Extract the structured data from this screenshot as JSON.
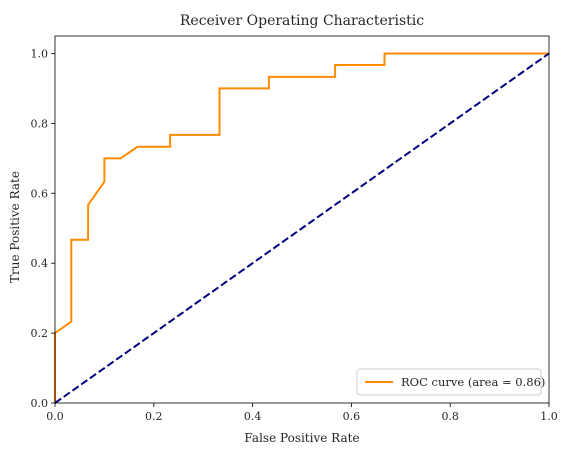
{
  "chart_data": {
    "type": "line",
    "title": "Receiver Operating Characteristic",
    "xlabel": "False Positive Rate",
    "ylabel": "True Positive Rate",
    "xlim": [
      0.0,
      1.0
    ],
    "ylim": [
      0.0,
      1.05
    ],
    "x_ticks": [
      "0.0",
      "0.2",
      "0.4",
      "0.6",
      "0.8",
      "1.0"
    ],
    "y_ticks": [
      "0.0",
      "0.2",
      "0.4",
      "0.6",
      "0.8",
      "1.0"
    ],
    "grid": false,
    "legend_position": "lower-right",
    "series": [
      {
        "name": "ROC curve (area = 0.86)",
        "color": "#ff8c00",
        "style": "solid",
        "x": [
          0.0,
          0.0,
          0.033,
          0.033,
          0.067,
          0.067,
          0.1,
          0.1,
          0.133,
          0.167,
          0.233,
          0.233,
          0.333,
          0.333,
          0.433,
          0.433,
          0.567,
          0.567,
          0.667,
          0.667,
          1.0
        ],
        "y": [
          0.0,
          0.2,
          0.233,
          0.467,
          0.467,
          0.567,
          0.633,
          0.7,
          0.7,
          0.733,
          0.733,
          0.767,
          0.767,
          0.9,
          0.9,
          0.933,
          0.933,
          0.967,
          0.967,
          1.0,
          1.0
        ]
      },
      {
        "color": "#000080",
        "style": "dashed",
        "x": [
          0.0,
          1.0
        ],
        "y": [
          0.0,
          1.0
        ]
      }
    ]
  }
}
